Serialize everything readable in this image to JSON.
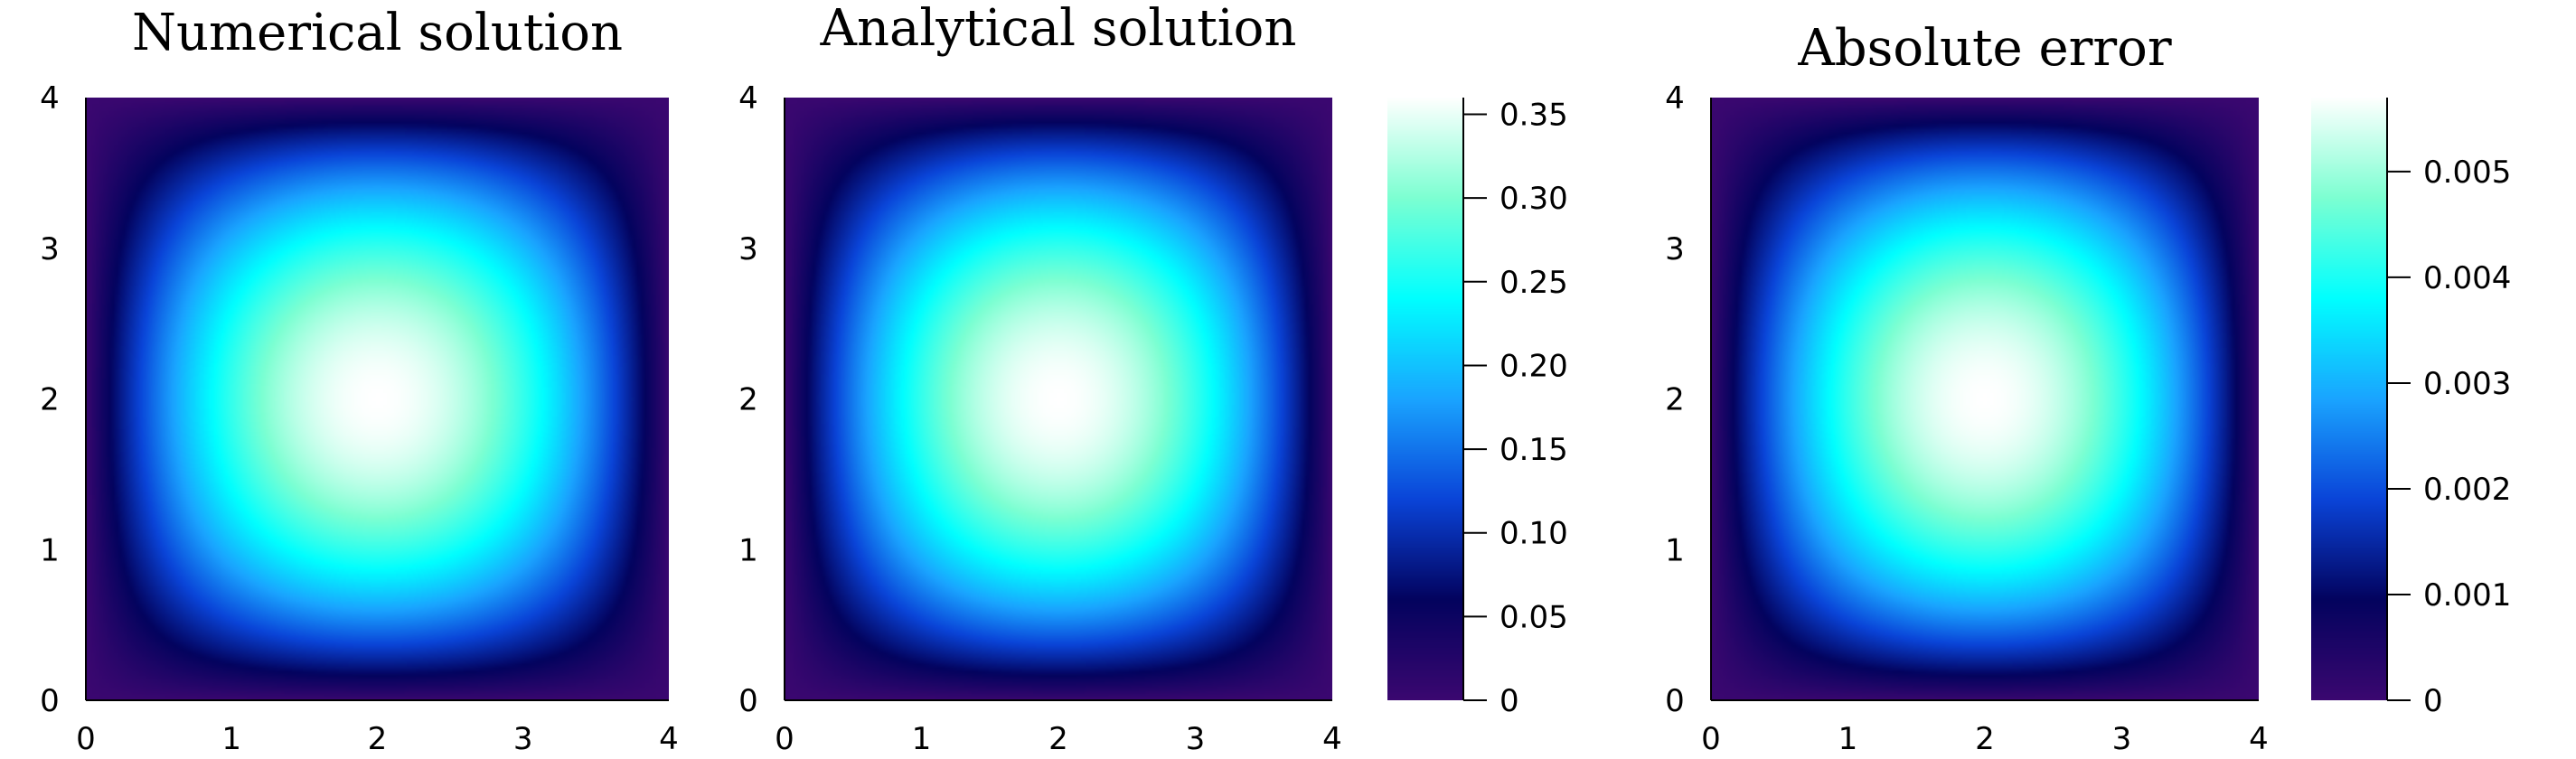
{
  "colormap": {
    "name": "ocean-like",
    "stops": [
      "#3b0770",
      "#03035e",
      "#0a44d8",
      "#1aa4ff",
      "#00ffff",
      "#7cffd2",
      "#ffffff"
    ]
  },
  "chart_data": [
    {
      "type": "heatmap",
      "title": "Numerical solution",
      "xlabel": "",
      "ylabel": "",
      "xlim": [
        0,
        4
      ],
      "ylim": [
        0,
        4
      ],
      "xticks": [
        "0",
        "1",
        "2",
        "3",
        "4"
      ],
      "yticks": [
        "0",
        "1",
        "2",
        "3",
        "4"
      ],
      "peak": {
        "x": 2,
        "y": 2,
        "value": 0.36
      },
      "min_value": 0,
      "colorbar": false
    },
    {
      "type": "heatmap",
      "title": "Analytical solution",
      "xlabel": "",
      "ylabel": "",
      "xlim": [
        0,
        4
      ],
      "ylim": [
        0,
        4
      ],
      "xticks": [
        "0",
        "1",
        "2",
        "3",
        "4"
      ],
      "yticks": [
        "0",
        "1",
        "2",
        "3",
        "4"
      ],
      "peak": {
        "x": 2,
        "y": 2,
        "value": 0.36
      },
      "min_value": 0,
      "colorbar": true,
      "colorbar_range": [
        0,
        0.36
      ],
      "colorbar_ticks": [
        0,
        0.05,
        0.1,
        0.15,
        0.2,
        0.25,
        0.3,
        0.35
      ],
      "colorbar_tick_labels": [
        "0",
        "0.05",
        "0.10",
        "0.15",
        "0.20",
        "0.25",
        "0.30",
        "0.35"
      ]
    },
    {
      "type": "heatmap",
      "title": "Absolute error",
      "xlabel": "",
      "ylabel": "",
      "xlim": [
        0,
        4
      ],
      "ylim": [
        0,
        4
      ],
      "xticks": [
        "0",
        "1",
        "2",
        "3",
        "4"
      ],
      "yticks": [
        "0",
        "1",
        "2",
        "3",
        "4"
      ],
      "peak": {
        "x": 2,
        "y": 2,
        "value": 0.0057
      },
      "min_value": 0,
      "colorbar": true,
      "colorbar_range": [
        0,
        0.0057
      ],
      "colorbar_ticks": [
        0,
        0.001,
        0.002,
        0.003,
        0.004,
        0.005
      ],
      "colorbar_tick_labels": [
        "0",
        "0.001",
        "0.002",
        "0.003",
        "0.004",
        "0.005"
      ]
    }
  ]
}
